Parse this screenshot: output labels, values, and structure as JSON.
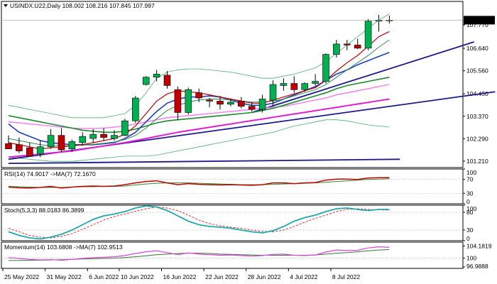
{
  "chart_data": [
    {
      "type": "candlestick",
      "symbol_line": "USINDX.U22,Daily",
      "ohlc_text": "108.002 108.216 107.845 107.997",
      "last_price": "107.997",
      "ylim": [
        100.9,
        108.9
      ],
      "yticks": [
        "107.770",
        "106.640",
        "105.560",
        "104.450",
        "103.370",
        "102.290",
        "101.210"
      ],
      "candles": [
        {
          "o": 102.05,
          "h": 102.45,
          "l": 101.85,
          "c": 101.8
        },
        {
          "o": 102.0,
          "h": 102.35,
          "l": 101.6,
          "c": 101.7
        },
        {
          "o": 101.85,
          "h": 102.1,
          "l": 101.5,
          "c": 101.45
        },
        {
          "o": 101.55,
          "h": 102.2,
          "l": 101.4,
          "c": 101.9
        },
        {
          "o": 101.9,
          "h": 102.75,
          "l": 101.8,
          "c": 102.45
        },
        {
          "o": 102.45,
          "h": 102.8,
          "l": 101.65,
          "c": 101.75
        },
        {
          "o": 101.8,
          "h": 102.25,
          "l": 101.65,
          "c": 102.15
        },
        {
          "o": 102.1,
          "h": 102.6,
          "l": 101.95,
          "c": 102.4
        },
        {
          "o": 102.3,
          "h": 102.75,
          "l": 102.1,
          "c": 102.5
        },
        {
          "o": 102.5,
          "h": 102.8,
          "l": 102.2,
          "c": 102.35
        },
        {
          "o": 102.3,
          "h": 102.7,
          "l": 102.2,
          "c": 102.45
        },
        {
          "o": 102.45,
          "h": 103.25,
          "l": 102.4,
          "c": 103.15
        },
        {
          "o": 103.15,
          "h": 104.35,
          "l": 103.05,
          "c": 104.25
        },
        {
          "o": 104.9,
          "h": 105.3,
          "l": 104.85,
          "c": 105.25
        },
        {
          "o": 105.25,
          "h": 105.6,
          "l": 105.05,
          "c": 105.4
        },
        {
          "o": 105.35,
          "h": 105.55,
          "l": 104.7,
          "c": 104.85
        },
        {
          "o": 104.65,
          "h": 104.8,
          "l": 103.2,
          "c": 103.55
        },
        {
          "o": 103.55,
          "h": 104.75,
          "l": 103.45,
          "c": 104.65
        },
        {
          "o": 104.5,
          "h": 104.7,
          "l": 104.05,
          "c": 104.25
        },
        {
          "o": 104.15,
          "h": 104.25,
          "l": 103.8,
          "c": 104.1
        },
        {
          "o": 104.1,
          "h": 104.35,
          "l": 103.7,
          "c": 103.95
        },
        {
          "o": 103.95,
          "h": 104.2,
          "l": 103.85,
          "c": 104.05
        },
        {
          "o": 104.1,
          "h": 104.3,
          "l": 103.75,
          "c": 103.85
        },
        {
          "o": 103.85,
          "h": 104.05,
          "l": 103.6,
          "c": 103.7
        },
        {
          "o": 103.7,
          "h": 104.4,
          "l": 103.55,
          "c": 104.2
        },
        {
          "o": 104.15,
          "h": 105.1,
          "l": 103.85,
          "c": 104.9
        },
        {
          "o": 104.85,
          "h": 105.2,
          "l": 104.6,
          "c": 104.95
        },
        {
          "o": 104.95,
          "h": 105.3,
          "l": 104.5,
          "c": 104.65
        },
        {
          "o": 104.65,
          "h": 105.0,
          "l": 104.55,
          "c": 104.95
        },
        {
          "o": 104.95,
          "h": 105.4,
          "l": 104.85,
          "c": 105.05
        },
        {
          "o": 105.05,
          "h": 106.4,
          "l": 104.95,
          "c": 106.35
        },
        {
          "o": 106.35,
          "h": 107.05,
          "l": 106.2,
          "c": 106.85
        },
        {
          "o": 106.85,
          "h": 107.05,
          "l": 106.55,
          "c": 106.8
        },
        {
          "o": 106.8,
          "h": 107.1,
          "l": 106.6,
          "c": 106.65
        },
        {
          "o": 106.65,
          "h": 108.05,
          "l": 106.55,
          "c": 107.95
        },
        {
          "o": 107.95,
          "h": 108.25,
          "l": 107.45,
          "c": 108.0
        },
        {
          "o": 108.0,
          "h": 108.22,
          "l": 107.84,
          "c": 107.997
        }
      ],
      "ma_red": [
        102.1,
        102.0,
        101.9,
        101.8,
        101.85,
        101.9,
        101.95,
        102.0,
        102.1,
        102.2,
        102.3,
        102.5,
        102.9,
        103.5,
        104.1,
        104.45,
        104.6,
        104.55,
        104.5,
        104.4,
        104.3,
        104.2,
        104.1,
        104.0,
        104.0,
        104.15,
        104.3,
        104.45,
        104.6,
        104.75,
        105.1,
        105.55,
        105.95,
        106.3,
        106.75,
        107.2,
        107.45
      ],
      "ma_green_thin": [
        102.3,
        102.2,
        102.1,
        102.0,
        101.95,
        101.95,
        101.95,
        101.98,
        102.02,
        102.07,
        102.13,
        102.25,
        102.45,
        102.8,
        103.25,
        103.65,
        103.9,
        104.05,
        104.15,
        104.2,
        104.2,
        104.15,
        104.1,
        104.05,
        104.05,
        104.1,
        104.2,
        104.35,
        104.5,
        104.65,
        104.9,
        105.25,
        105.6,
        105.95,
        106.3,
        106.7,
        107.05
      ],
      "ma_blue": [
        103.0,
        102.6,
        102.4,
        102.2,
        102.1,
        102.05,
        102.0,
        102.0,
        102.0,
        102.05,
        102.1,
        102.3,
        102.6,
        103.1,
        103.6,
        104.0,
        104.2,
        104.3,
        104.3,
        104.35,
        104.3,
        104.15,
        104.0,
        103.9,
        103.9,
        104.0,
        104.2,
        104.4,
        104.6,
        104.8,
        105.1,
        105.4,
        105.6,
        105.85,
        106.05,
        106.25,
        106.45
      ],
      "ma_green": [
        103.4,
        103.3,
        103.2,
        103.1,
        103.0,
        102.9,
        102.8,
        102.7,
        102.65,
        102.6,
        102.6,
        102.65,
        102.75,
        102.9,
        103.05,
        103.15,
        103.2,
        103.25,
        103.3,
        103.35,
        103.4,
        103.45,
        103.5,
        103.55,
        103.65,
        103.75,
        103.9,
        104.05,
        104.2,
        104.35,
        104.5,
        104.7,
        104.85,
        104.95,
        105.05,
        105.15,
        105.25
      ],
      "ma_magenta": [
        103.1,
        103.05,
        103.0,
        102.95,
        102.9,
        102.85,
        102.8,
        102.78,
        102.78,
        102.8,
        102.85,
        102.9,
        103.0,
        103.1,
        103.2,
        103.3,
        103.35,
        103.4,
        103.45,
        103.5,
        103.55,
        103.6,
        103.65,
        103.7,
        103.75,
        103.8,
        103.85,
        103.95,
        104.05,
        104.15,
        104.25,
        104.4,
        104.5,
        104.6,
        104.7,
        104.8,
        104.9
      ],
      "ma_magenta_thick": [
        101.4,
        101.45,
        101.5,
        101.55,
        101.6,
        101.65,
        101.7,
        101.78,
        101.86,
        101.94,
        102.02,
        102.1,
        102.2,
        102.3,
        102.4,
        102.5,
        102.6,
        102.68,
        102.76,
        102.84,
        102.92,
        103.0,
        103.08,
        103.16,
        103.24,
        103.32,
        103.4,
        103.48,
        103.56,
        103.64,
        103.72,
        103.8,
        103.88,
        103.96,
        104.04,
        104.12,
        104.2
      ],
      "bb_upper": [
        103.9,
        103.8,
        103.7,
        103.6,
        103.5,
        103.4,
        103.3,
        103.3,
        103.3,
        103.3,
        103.4,
        103.5,
        103.9,
        104.5,
        105.2,
        105.5,
        105.6,
        105.65,
        105.65,
        105.6,
        105.55,
        105.5,
        105.4,
        105.3,
        105.2,
        105.2,
        105.3,
        105.4,
        105.55,
        105.7,
        106.0,
        106.4,
        106.8,
        107.2,
        107.6,
        108.0,
        108.3
      ],
      "bb_lower": [
        101.4,
        101.35,
        101.3,
        101.25,
        101.2,
        101.2,
        101.2,
        101.25,
        101.3,
        101.35,
        101.4,
        101.45,
        101.45,
        101.45,
        101.5,
        101.6,
        101.7,
        101.8,
        101.9,
        102.0,
        102.1,
        102.2,
        102.3,
        102.4,
        102.5,
        102.6,
        102.75,
        102.9,
        103.0,
        103.1,
        103.2,
        103.2,
        103.15,
        103.05,
        102.95,
        102.9,
        102.85
      ],
      "trendlines": [
        {
          "name": "blue-dark-trendline-1",
          "x0": 0,
          "y0": 101.3,
          "x1": 46,
          "y1": 104.55
        },
        {
          "name": "blue-trendline-2",
          "x0": 23,
          "y0": 103.55,
          "x1": 44,
          "y1": 106.95
        },
        {
          "name": "blue-trendline-3",
          "x0": 0,
          "y0": 101.1,
          "x1": 37,
          "y1": 101.3
        }
      ]
    },
    {
      "type": "line",
      "label": "RSI(14) 74.9017  ->MA(7) 72.1670",
      "ylim": [
        0,
        100
      ],
      "yticks": [
        "100",
        "70",
        "30",
        "0"
      ],
      "series": [
        {
          "name": "RSI(14)",
          "values": [
            48,
            46,
            45,
            47,
            50,
            45,
            48,
            50,
            51,
            50,
            51,
            55,
            60,
            64,
            66,
            60,
            55,
            58,
            56,
            55,
            54,
            55,
            54,
            53,
            55,
            60,
            60,
            58,
            60,
            61,
            68,
            71,
            71,
            70,
            74,
            75,
            75
          ]
        },
        {
          "name": "MA(7)",
          "values": [
            50,
            49,
            48,
            47,
            47,
            47,
            48,
            49,
            49,
            50,
            50,
            51,
            54,
            57,
            59,
            60,
            60,
            60,
            59,
            58,
            57,
            56,
            55,
            55,
            55,
            56,
            57,
            58,
            59,
            60,
            62,
            64,
            66,
            68,
            70,
            71,
            72
          ]
        }
      ]
    },
    {
      "type": "line",
      "label": "Stoch(5,3,3) 88.0183 86.3899",
      "ylim": [
        0,
        100
      ],
      "yticks": [
        "100",
        "80",
        "30",
        "0"
      ],
      "series": [
        {
          "name": "%K",
          "values": [
            25,
            15,
            8,
            5,
            10,
            18,
            30,
            45,
            60,
            70,
            75,
            82,
            92,
            98,
            95,
            85,
            70,
            55,
            45,
            40,
            38,
            35,
            30,
            25,
            22,
            28,
            40,
            55,
            65,
            72,
            82,
            90,
            92,
            88,
            85,
            88,
            88
          ]
        },
        {
          "name": "%D",
          "values": [
            35,
            25,
            15,
            10,
            8,
            12,
            20,
            32,
            45,
            58,
            68,
            75,
            83,
            90,
            95,
            92,
            85,
            72,
            58,
            48,
            42,
            38,
            35,
            30,
            26,
            25,
            30,
            40,
            52,
            63,
            72,
            82,
            88,
            90,
            88,
            87,
            86
          ]
        }
      ]
    },
    {
      "type": "line",
      "label": "Momentum(14) 103.6808  ->MA(7) 102.9513",
      "ylim": [
        96.5,
        105.5
      ],
      "yticks": [
        "104.1819",
        "100",
        "96.9888"
      ],
      "series": [
        {
          "name": "Momentum(14)",
          "values": [
            100.2,
            99.9,
            99.6,
            99.4,
            99.5,
            99.3,
            99.6,
            99.9,
            100.2,
            100.3,
            100.5,
            100.9,
            101.6,
            102.2,
            102.5,
            101.9,
            101.2,
            101.8,
            101.4,
            101.2,
            101.0,
            101.1,
            100.9,
            100.7,
            100.9,
            101.3,
            101.4,
            101.0,
            100.9,
            101.1,
            102.1,
            102.8,
            102.6,
            102.7,
            103.5,
            103.9,
            103.7
          ]
        },
        {
          "name": "MA(7)",
          "values": [
            99.2,
            99.2,
            99.3,
            99.3,
            99.4,
            99.5,
            99.6,
            99.7,
            99.8,
            99.9,
            100.0,
            100.2,
            100.5,
            100.8,
            101.2,
            101.4,
            101.6,
            101.7,
            101.7,
            101.6,
            101.4,
            101.3,
            101.2,
            101.1,
            101.0,
            101.0,
            101.0,
            101.0,
            101.0,
            101.1,
            101.4,
            101.7,
            101.9,
            102.2,
            102.5,
            102.8,
            102.95
          ]
        }
      ]
    }
  ],
  "x_axis_labels": [
    "25 May 2022",
    "31 May 2022",
    "6 Jun 2022",
    "10 Jun 2022",
    "16 Jun 2022",
    "22 Jun 2022",
    "28 Jun 2022",
    "4 Jul 2022",
    "8 Jul 2022"
  ],
  "colors": {
    "bull": "#00b050",
    "bear": "#c00000",
    "ma_red": "#c00000",
    "ma_green_thin": "#2e8b57",
    "ma_blue": "#1f3fbf",
    "ma_green": "#1a8a2e",
    "ma_magenta": "#ee88ee",
    "ma_magenta_thick": "#e020d0",
    "bb": "#4caf70",
    "trend": "#1a1a8a",
    "rsi": "#c00000",
    "rsi_ma": "#2e8b2e",
    "stoch_k": "#20a8b0",
    "stoch_d": "#d02020",
    "mom": "#e040e0",
    "mom_ma": "#2e7d32",
    "grid": "#c0c0c0",
    "price_bg": "#000000",
    "price_fg": "#ffffff"
  }
}
